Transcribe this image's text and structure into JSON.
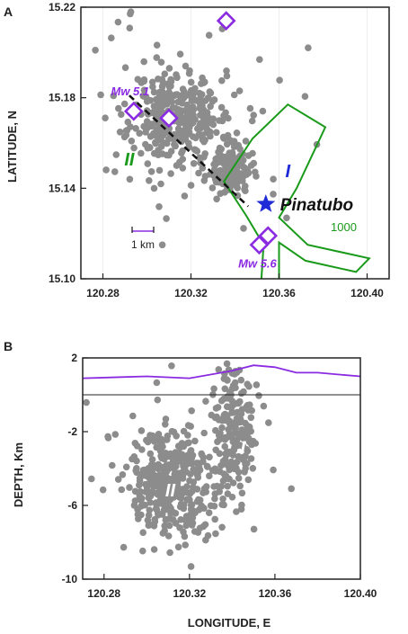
{
  "colors": {
    "dots": "#8c8c8c",
    "contour": "#1a9a1a",
    "topo": "#8a2be2",
    "star": "#1f2bd6",
    "diamond": "#8a2be2",
    "fault": "#111111",
    "axis": "#222222"
  },
  "chart_data": [
    {
      "panel_label": "A",
      "type": "scatter",
      "xlabel": "",
      "ylabel": "LATITUDE, N",
      "xlim": [
        120.27,
        120.41
      ],
      "ylim": [
        15.1,
        15.22
      ],
      "xticks": [
        "120.28",
        "120.32",
        "120.36",
        "120.40"
      ],
      "yticks": [
        "15.10",
        "15.14",
        "15.18",
        "15.22"
      ],
      "clusters": [
        {
          "cx": 120.313,
          "cy": 15.172,
          "sx": 0.01,
          "sy": 0.01,
          "n": 320,
          "seed": 11
        },
        {
          "cx": 120.337,
          "cy": 15.148,
          "sx": 0.005,
          "sy": 0.005,
          "n": 130,
          "seed": 23
        },
        {
          "cx": 120.32,
          "cy": 15.17,
          "sx": 0.025,
          "sy": 0.025,
          "n": 70,
          "seed": 37
        }
      ],
      "events_mw": [
        {
          "label": "Mw 5.1",
          "x": 120.294,
          "y": 15.174
        },
        {
          "label": "",
          "x": 120.31,
          "y": 15.171
        },
        {
          "label": "",
          "x": 120.336,
          "y": 15.214
        },
        {
          "label": "Mw 5.6",
          "x": 120.351,
          "y": 15.115
        },
        {
          "label": "",
          "x": 120.355,
          "y": 15.119
        }
      ],
      "volcano": {
        "label": "Pinatubo",
        "x": 120.354,
        "y": 15.133
      },
      "fault_line": [
        [
          120.292,
          15.181
        ],
        [
          120.346,
          15.132
        ]
      ],
      "contour": {
        "label": "1000",
        "points": [
          [
            120.352,
            15.1
          ],
          [
            120.353,
            15.115
          ],
          [
            120.345,
            15.128
          ],
          [
            120.335,
            15.143
          ],
          [
            120.348,
            15.162
          ],
          [
            120.364,
            15.177
          ],
          [
            120.381,
            15.167
          ],
          [
            120.368,
            15.14
          ],
          [
            120.36,
            15.127
          ],
          [
            120.373,
            15.115
          ],
          [
            120.401,
            15.109
          ],
          [
            120.395,
            15.103
          ],
          [
            120.372,
            15.108
          ],
          [
            120.36,
            15.116
          ],
          [
            120.36,
            15.1
          ]
        ]
      },
      "zone_labels": [
        {
          "text": "II",
          "x": 120.292,
          "y": 15.15
        },
        {
          "text": "I",
          "x": 120.364,
          "y": 15.145
        }
      ],
      "scale_bar": "1 km"
    },
    {
      "panel_label": "B",
      "type": "scatter",
      "xlabel": "LONGITUDE, E",
      "ylabel": "DEPTH, Km",
      "xlim": [
        120.27,
        120.4
      ],
      "ylim": [
        -10,
        2
      ],
      "xticks": [
        "120.28",
        "120.32",
        "120.36",
        "120.40"
      ],
      "yticks": [
        "2",
        "-2",
        "-6",
        "-10"
      ],
      "clusters": [
        {
          "cx": 120.312,
          "cy": -5.0,
          "sx": 0.01,
          "sy": 1.4,
          "n": 330,
          "seed": 51
        },
        {
          "cx": 120.34,
          "cy": -2.3,
          "sx": 0.0045,
          "sy": 1.8,
          "n": 170,
          "seed": 67
        },
        {
          "cx": 120.32,
          "cy": -4.0,
          "sx": 0.025,
          "sy": 2.8,
          "n": 80,
          "seed": 83
        }
      ],
      "topography": [
        [
          120.27,
          0.9
        ],
        [
          120.3,
          1.0
        ],
        [
          120.32,
          0.9
        ],
        [
          120.34,
          1.3
        ],
        [
          120.35,
          1.6
        ],
        [
          120.36,
          1.5
        ],
        [
          120.37,
          1.2
        ],
        [
          120.38,
          1.2
        ],
        [
          120.39,
          1.1
        ],
        [
          120.4,
          1.0
        ]
      ],
      "sea_level": 0,
      "zone_labels": [
        {
          "text": "II",
          "x": 120.311,
          "y": -5.5
        },
        {
          "text": "I",
          "x": 120.345,
          "y": -3.2
        }
      ]
    }
  ]
}
